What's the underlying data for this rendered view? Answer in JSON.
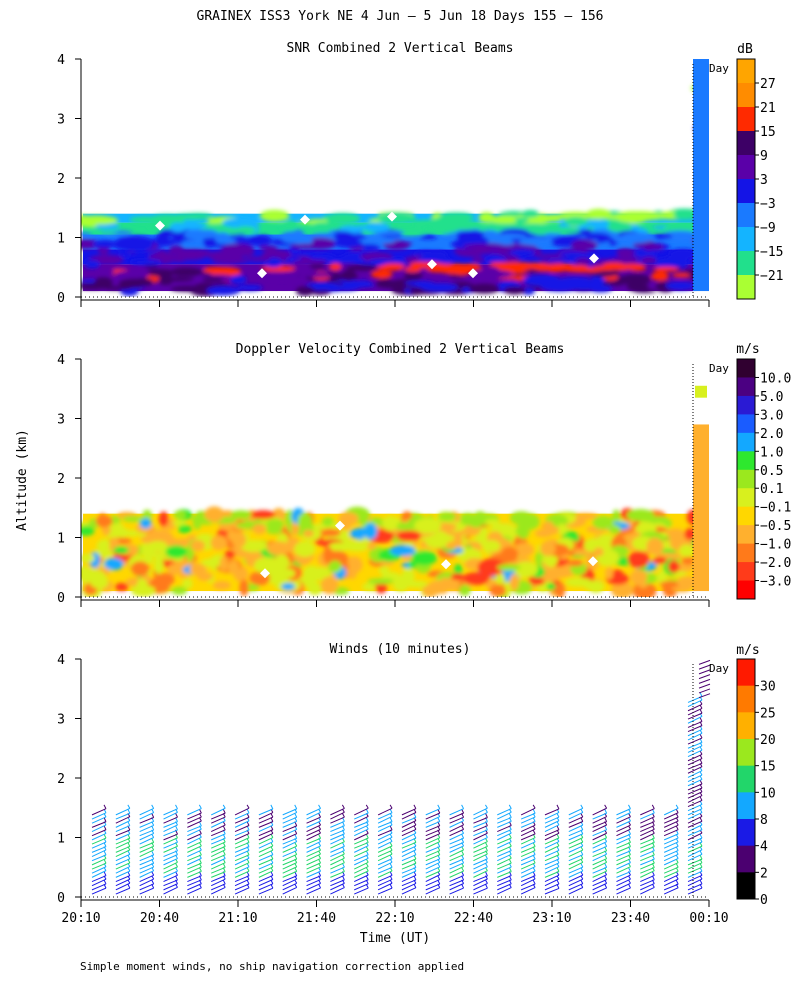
{
  "figure": {
    "title": "GRAINEX ISS3 York NE   4 Jun –  5 Jun 18 Days 155 – 156",
    "y_axis_label": "Altitude (km)",
    "x_axis_label": "Time (UT)",
    "footnote": "Simple moment winds, no ship navigation correction applied",
    "day_marker_label": "Day"
  },
  "chart_data": [
    {
      "type": "heatmap",
      "title": "SNR Combined 2 Vertical Beams",
      "ylim": [
        0,
        4
      ],
      "yticks": [
        "0",
        "1",
        "2",
        "3",
        "4"
      ],
      "colorbar": {
        "unit": "dB",
        "labels": [
          "27",
          "21",
          "15",
          "9",
          "3",
          "−3",
          "−9",
          "−15",
          "−21"
        ],
        "colors": [
          "#ffa500",
          "#ff8c00",
          "#ff2a00",
          "#3d0066",
          "#5a00a8",
          "#1414e6",
          "#1a7aff",
          "#14b4ff",
          "#21e08c",
          "#aaff33"
        ]
      },
      "data_top_km": 1.4,
      "layers_bottom_to_top": [
        "-3",
        "3",
        "15 (band near 0.3-0.5 km)",
        "3",
        "-3",
        "-9",
        "-15",
        "-21"
      ]
    },
    {
      "type": "heatmap",
      "title": "Doppler Velocity Combined 2 Vertical Beams",
      "ylim": [
        0,
        4
      ],
      "yticks": [
        "0",
        "1",
        "2",
        "3",
        "4"
      ],
      "colorbar": {
        "unit": "m/s",
        "labels": [
          "10.0",
          "5.0",
          "3.0",
          "2.0",
          "1.0",
          "0.5",
          "0.1",
          "−0.1",
          "−0.5",
          "−1.0",
          "−2.0",
          "−3.0"
        ],
        "colors": [
          "#300030",
          "#4b0082",
          "#2a1ad4",
          "#1a5cff",
          "#13a8ff",
          "#2ee82e",
          "#9be81e",
          "#d8f01e",
          "#ffd700",
          "#ffb02e",
          "#ff7a1a",
          "#ff3b1a",
          "#ff0000"
        ]
      },
      "data_top_km": 1.4
    },
    {
      "type": "scatter",
      "title": "Winds (10 minutes)",
      "ylim": [
        0,
        4
      ],
      "yticks": [
        "0",
        "1",
        "2",
        "3",
        "4"
      ],
      "x_ticks": [
        "20:10",
        "20:40",
        "21:10",
        "21:40",
        "22:10",
        "22:40",
        "23:10",
        "23:40",
        "00:10"
      ],
      "colorbar": {
        "unit": "m/s",
        "labels": [
          "30",
          "25",
          "20",
          "15",
          "10",
          "8",
          "4",
          "2",
          "0"
        ],
        "colors": [
          "#ff1a00",
          "#ff7a00",
          "#ffb000",
          "#9be81e",
          "#22d66a",
          "#13a8ff",
          "#1a1ae6",
          "#4b0070",
          "#000000"
        ]
      },
      "profiles_every_minutes": 10,
      "data_top_km": 1.4,
      "last_profile_top_km": 4.0
    }
  ]
}
